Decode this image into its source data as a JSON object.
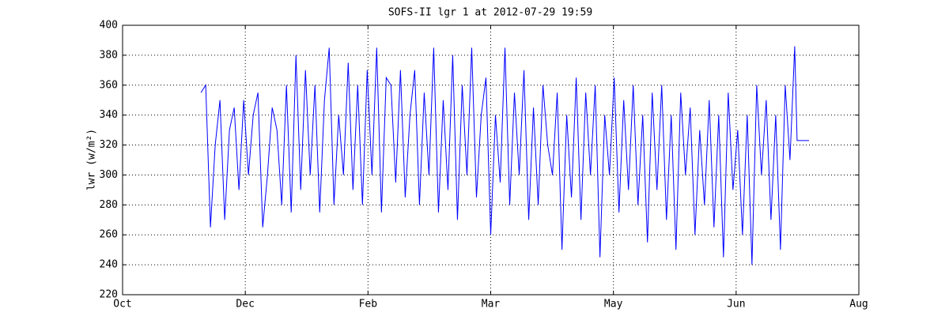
{
  "chart_data": {
    "type": "line",
    "title": "SOFS-II lgr 1 at 2012-07-29 19:59",
    "y_label": "lwr (w/m²)",
    "x": [
      33,
      35,
      37,
      39,
      41,
      43,
      45,
      47,
      49,
      51,
      53,
      55,
      57,
      59,
      61,
      63,
      65,
      67,
      69,
      71,
      73,
      75,
      77,
      79,
      81,
      83,
      85,
      87,
      89,
      91,
      93,
      95,
      97,
      99,
      101,
      103,
      105,
      107,
      109,
      111,
      113,
      115,
      117,
      119,
      121,
      123,
      125,
      127,
      129,
      131,
      133,
      135,
      137,
      139,
      141,
      143,
      145,
      147,
      149,
      151,
      153,
      155,
      157,
      159,
      161,
      163,
      165,
      167,
      169,
      171,
      173,
      175,
      177,
      179,
      181,
      183,
      185,
      187,
      189,
      191,
      193,
      195,
      197,
      199,
      201,
      203,
      205,
      207,
      209,
      211,
      213,
      215,
      217,
      219,
      221,
      223,
      225,
      227,
      229,
      231,
      233,
      235,
      237,
      239,
      241,
      243,
      245,
      247,
      249,
      251,
      253,
      255,
      257,
      259,
      261,
      263,
      265,
      267,
      269,
      271,
      273,
      275,
      277,
      279,
      281,
      283,
      284,
      289
    ],
    "series": [
      {
        "name": "lwr",
        "color": "#0000ff",
        "values": [
          355,
          360,
          265,
          320,
          350,
          270,
          330,
          345,
          290,
          350,
          300,
          340,
          355,
          265,
          300,
          345,
          330,
          280,
          360,
          275,
          380,
          290,
          370,
          300,
          360,
          275,
          350,
          385,
          280,
          340,
          300,
          375,
          290,
          360,
          280,
          370,
          300,
          385,
          275,
          365,
          360,
          295,
          370,
          285,
          340,
          370,
          280,
          355,
          300,
          385,
          275,
          350,
          290,
          380,
          270,
          360,
          300,
          385,
          285,
          340,
          365,
          260,
          340,
          295,
          385,
          280,
          355,
          300,
          370,
          270,
          345,
          280,
          360,
          320,
          300,
          355,
          250,
          340,
          285,
          365,
          270,
          355,
          300,
          360,
          245,
          340,
          300,
          365,
          275,
          350,
          290,
          360,
          280,
          340,
          255,
          355,
          290,
          360,
          270,
          340,
          250,
          355,
          300,
          345,
          260,
          330,
          280,
          350,
          265,
          340,
          245,
          355,
          290,
          330,
          260,
          340,
          240,
          360,
          300,
          350,
          270,
          340,
          250,
          360,
          310,
          386,
          323,
          323
        ]
      }
    ],
    "xlim": [
      0,
      310
    ],
    "xticks": [
      {
        "value": 0,
        "label": "Oct"
      },
      {
        "value": 51.67,
        "label": "Dec"
      },
      {
        "value": 103.33,
        "label": "Feb"
      },
      {
        "value": 155,
        "label": "Mar"
      },
      {
        "value": 206.67,
        "label": "May"
      },
      {
        "value": 258.33,
        "label": "Jun"
      },
      {
        "value": 310,
        "label": "Aug"
      }
    ],
    "ylim": [
      220,
      400
    ],
    "yticks": [
      220,
      240,
      260,
      280,
      300,
      320,
      340,
      360,
      380,
      400
    ],
    "grid": true
  }
}
